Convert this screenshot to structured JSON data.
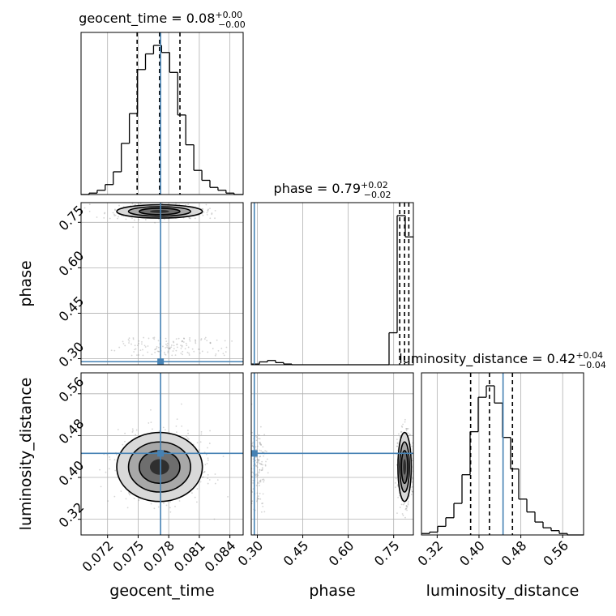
{
  "chart_data": {
    "type": "corner",
    "parameters": [
      "geocent_time",
      "phase",
      "luminosity_distance"
    ],
    "ranges": {
      "geocent_time": [
        0.0694,
        0.0853
      ],
      "phase": [
        0.28,
        0.815
      ],
      "luminosity_distance": [
        0.29,
        0.6
      ]
    },
    "injection": {
      "geocent_time": 0.0772,
      "phase": 0.29,
      "luminosity_distance": 0.446
    },
    "titles": [
      {
        "parameter": "geocent_time",
        "text": "geocent_time = 0.08",
        "plus": "+0.00",
        "minus": "−0.00"
      },
      {
        "parameter": "phase",
        "text": "phase = 0.79",
        "plus": "+0.02",
        "minus": "−0.02"
      },
      {
        "parameter": "luminosity_distance",
        "text": "luminosity_distance = 0.42",
        "plus": "+0.04",
        "minus": "−0.04"
      }
    ],
    "quantiles": {
      "geocent_time": [
        0.0749,
        0.0771,
        0.0791
      ],
      "phase": [
        0.77,
        0.786,
        0.8
      ],
      "luminosity_distance": [
        0.384,
        0.42,
        0.464
      ]
    },
    "histograms": {
      "geocent_time": {
        "edges": [
          0.0694,
          0.07019,
          0.07098,
          0.07177,
          0.07256,
          0.07335,
          0.07414,
          0.07493,
          0.07572,
          0.07651,
          0.0773,
          0.07809,
          0.07888,
          0.07967,
          0.08046,
          0.08125,
          0.08204,
          0.08283,
          0.08362,
          0.08441,
          0.0853
        ],
        "counts": [
          0,
          1,
          3,
          7,
          16,
          36,
          57,
          88,
          99,
          105,
          100,
          86,
          56,
          35,
          17,
          10,
          5,
          3,
          1,
          0
        ]
      },
      "phase": {
        "edges": [
          0.28,
          0.30675,
          0.3335,
          0.36025,
          0.387,
          0.41375,
          0.4405,
          0.46725,
          0.494,
          0.52075,
          0.5475,
          0.57425,
          0.601,
          0.62775,
          0.6545,
          0.68125,
          0.708,
          0.73475,
          0.7615,
          0.78825,
          0.815
        ],
        "counts": [
          1,
          4,
          6,
          3,
          1,
          0,
          0,
          0,
          0,
          0,
          0,
          0,
          0,
          0,
          0,
          0,
          0,
          45,
          210,
          180
        ]
      },
      "luminosity_distance": {
        "edges": [
          0.29,
          0.3055,
          0.321,
          0.3365,
          0.352,
          0.3675,
          0.383,
          0.3985,
          0.414,
          0.4295,
          0.445,
          0.4605,
          0.476,
          0.4915,
          0.507,
          0.5225,
          0.538,
          0.5535,
          0.569,
          0.5845,
          0.6
        ],
        "counts": [
          1,
          2,
          6,
          12,
          22,
          42,
          72,
          96,
          104,
          92,
          68,
          46,
          25,
          16,
          9,
          5,
          3,
          1,
          0,
          0
        ]
      }
    },
    "ticks": {
      "geocent_time": [
        "0.072",
        "0.075",
        "0.078",
        "0.081",
        "0.084"
      ],
      "phase": [
        "0.30",
        "0.45",
        "0.60",
        "0.75"
      ],
      "luminosity_distance": [
        "0.32",
        "0.40",
        "0.48",
        "0.56"
      ]
    },
    "axis_labels": {
      "geocent_time": "geocent_time",
      "phase": "phase",
      "luminosity_distance": "luminosity_distance"
    },
    "grid": true,
    "colors": {
      "injection": "#4682b4",
      "hist": "#000000",
      "scatter": "#888888"
    }
  }
}
